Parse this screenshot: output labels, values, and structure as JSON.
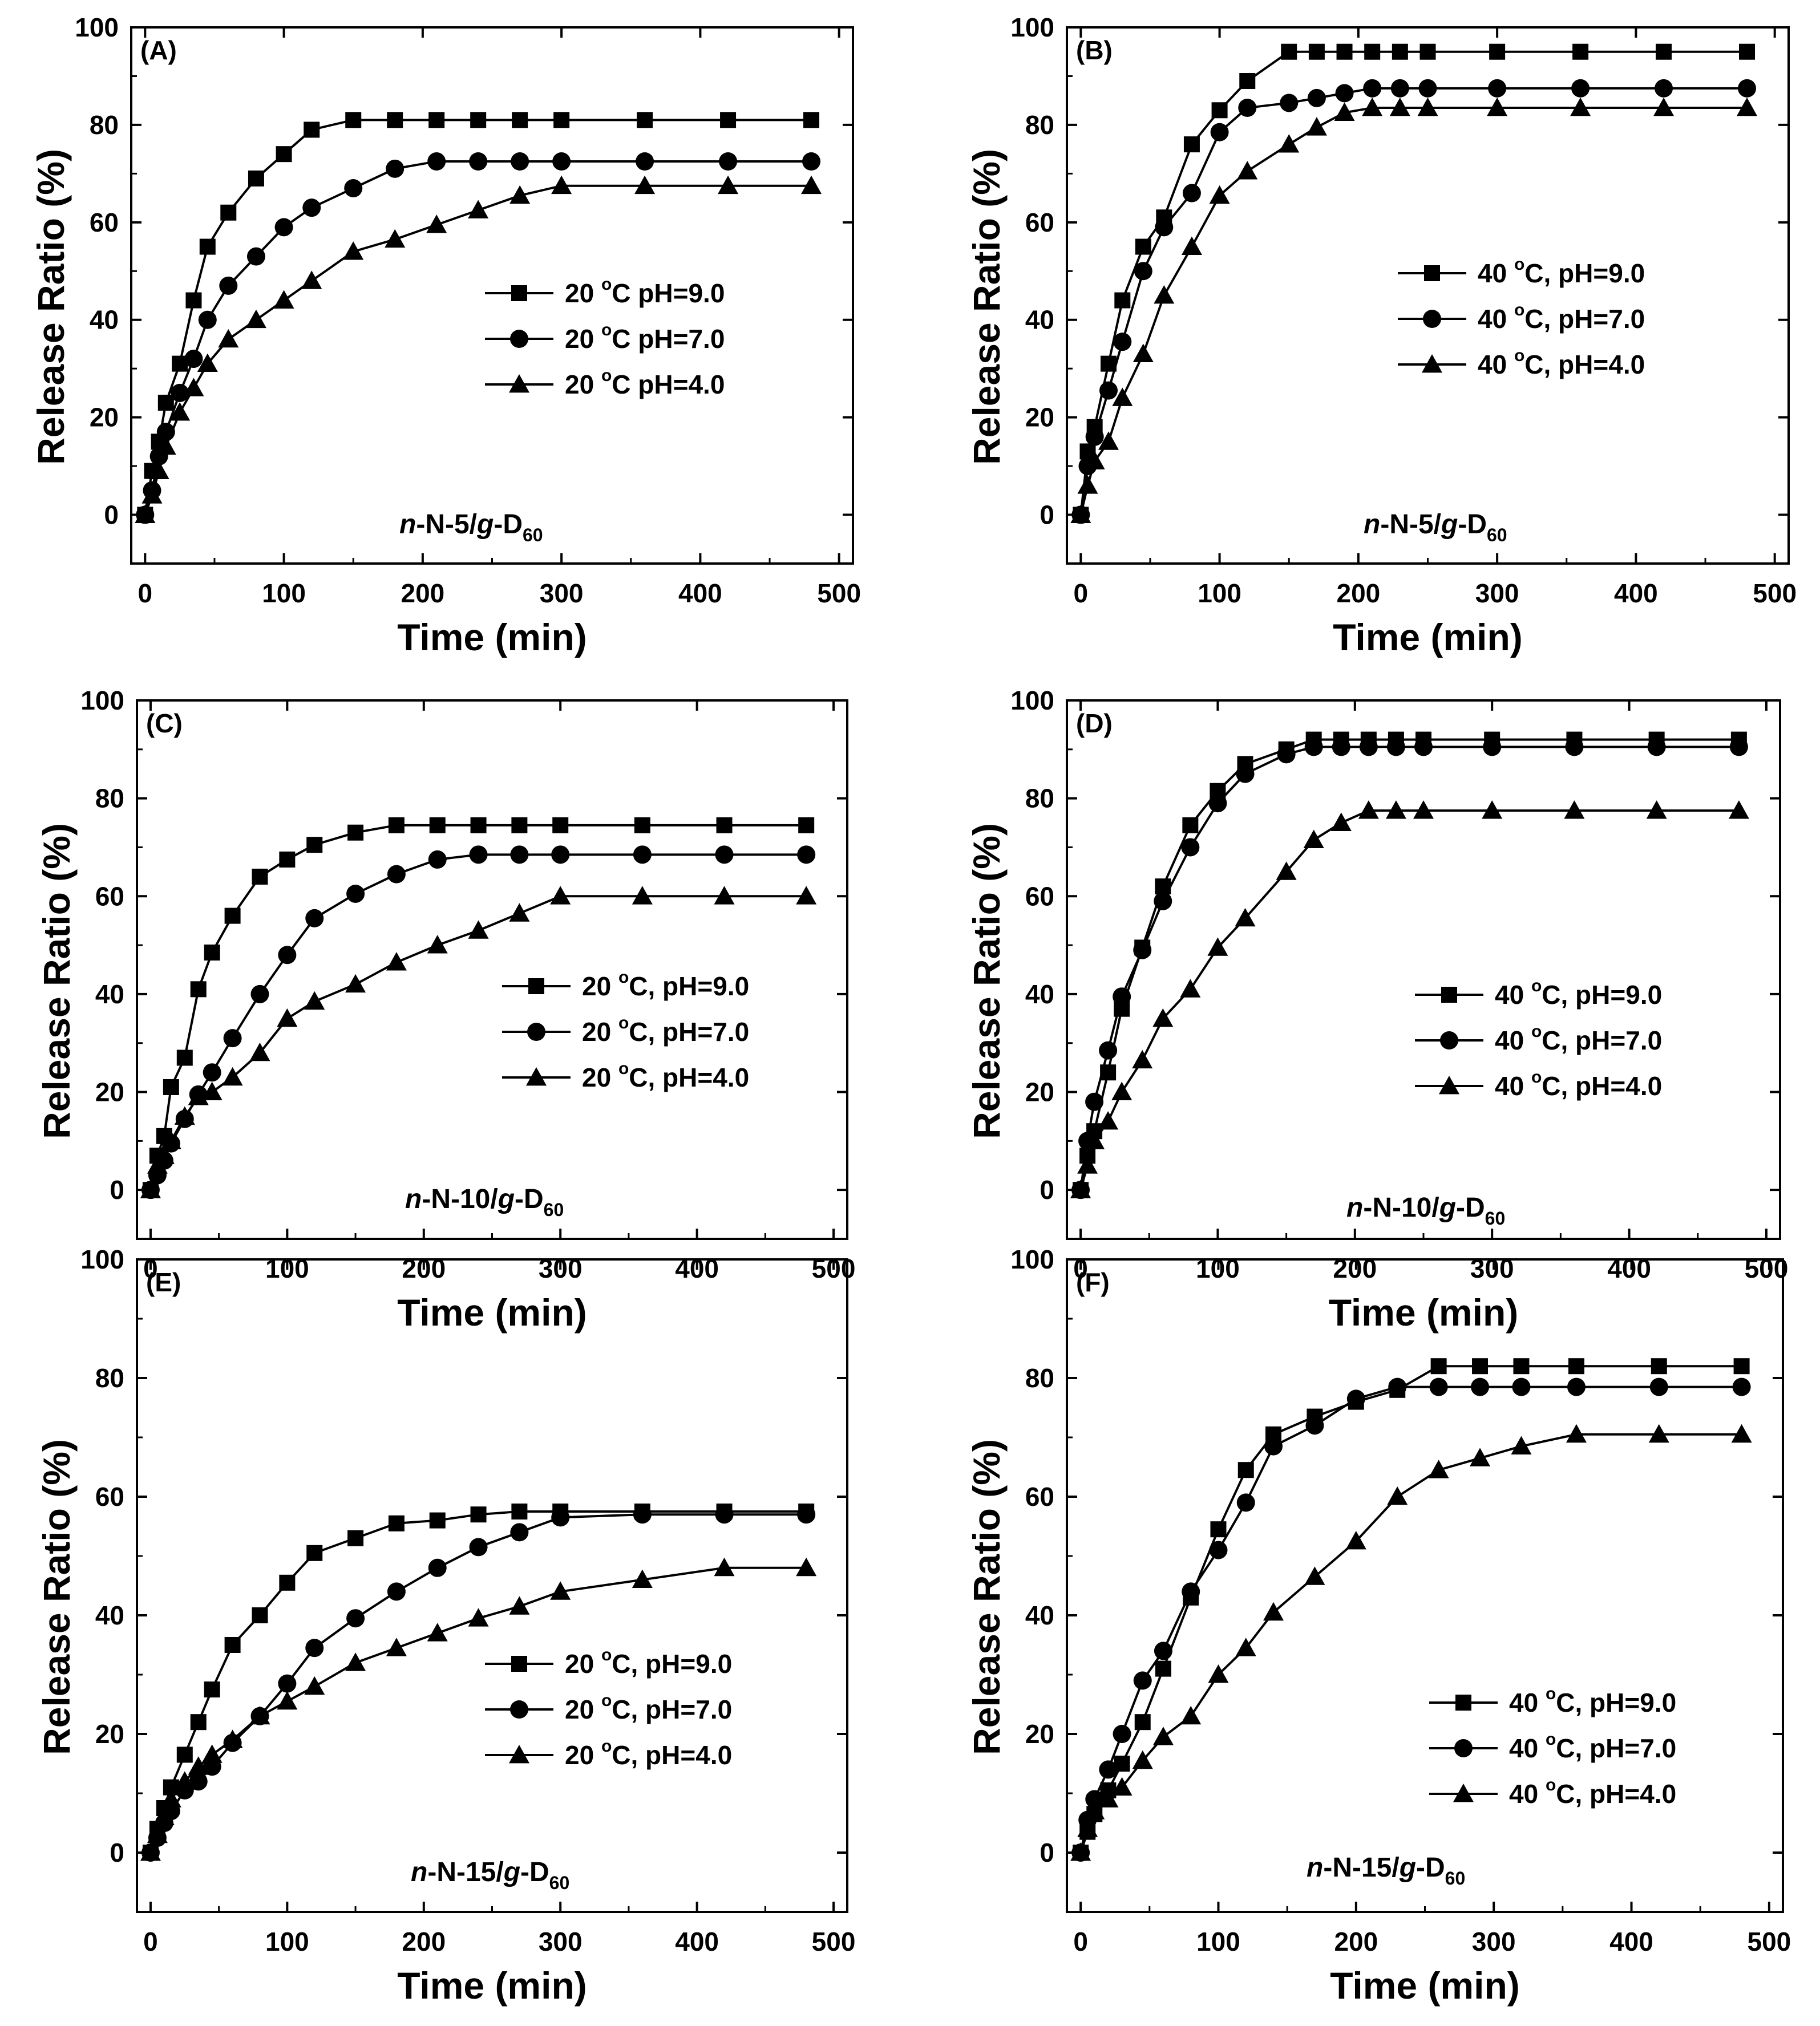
{
  "chart_data": [
    {
      "type": "line",
      "panel_label": "(A)",
      "xlabel": "Time (min)",
      "ylabel": "Release Ratio (%)",
      "xlim": [
        -10,
        510
      ],
      "ylim": [
        -10,
        100
      ],
      "xticks": [
        0,
        100,
        200,
        300,
        400,
        500
      ],
      "yticks": [
        0,
        20,
        40,
        60,
        80,
        100
      ],
      "legend_position": "center-right",
      "sample": {
        "prefix": "n",
        "middle": "-N-5/",
        "g": "g",
        "suffix": "-D",
        "sub": "60"
      },
      "series": [
        {
          "name": "20 °C pH=9.0",
          "temp": "20 ",
          "deg": "o",
          "rest": "C pH=9.0",
          "marker": "square",
          "x": [
            0,
            5,
            10,
            15,
            25,
            35,
            45,
            60,
            80,
            100,
            120,
            150,
            180,
            210,
            240,
            270,
            300,
            360,
            420,
            480
          ],
          "y": [
            0,
            9,
            15,
            23,
            31,
            44,
            55,
            62,
            69,
            74,
            79,
            81,
            81,
            81,
            81,
            81,
            81,
            81,
            81,
            81
          ]
        },
        {
          "name": "20 °C pH=7.0",
          "temp": "20 ",
          "deg": "o",
          "rest": "C pH=7.0",
          "marker": "circle",
          "x": [
            0,
            5,
            10,
            15,
            25,
            35,
            45,
            60,
            80,
            100,
            120,
            150,
            180,
            210,
            240,
            270,
            300,
            360,
            420,
            480
          ],
          "y": [
            0,
            5,
            12,
            17,
            25,
            32,
            40,
            47,
            53,
            59,
            63,
            67,
            71,
            72.5,
            72.5,
            72.5,
            72.5,
            72.5,
            72.5,
            72.5
          ]
        },
        {
          "name": "20 °C pH=4.0",
          "temp": "20 ",
          "deg": "o",
          "rest": "C pH=4.0",
          "marker": "triangle",
          "x": [
            0,
            5,
            10,
            15,
            25,
            35,
            45,
            60,
            80,
            100,
            120,
            150,
            180,
            210,
            240,
            270,
            300,
            360,
            420,
            480
          ],
          "y": [
            0,
            4,
            9,
            14,
            21,
            26,
            31,
            36,
            40,
            44,
            48,
            54,
            56.5,
            59.5,
            62.5,
            65.5,
            67.5,
            67.5,
            67.5,
            67.5
          ]
        }
      ]
    },
    {
      "type": "line",
      "panel_label": "(B)",
      "xlabel": "Time (min)",
      "ylabel": "Release Ratio (%)",
      "xlim": [
        -10,
        510
      ],
      "ylim": [
        -10,
        100
      ],
      "xticks": [
        0,
        100,
        200,
        300,
        400,
        500
      ],
      "yticks": [
        0,
        20,
        40,
        60,
        80,
        100
      ],
      "legend_position": "center-right",
      "sample": {
        "prefix": "n",
        "middle": "-N-5/",
        "g": "g",
        "suffix": "-D",
        "sub": "60"
      },
      "series": [
        {
          "name": "40 °C, pH=9.0",
          "temp": "40 ",
          "deg": "o",
          "rest": "C, pH=9.0",
          "marker": "square",
          "x": [
            0,
            5,
            10,
            20,
            30,
            45,
            60,
            80,
            100,
            120,
            150,
            170,
            190,
            210,
            230,
            250,
            300,
            360,
            420,
            480
          ],
          "y": [
            0,
            13,
            18,
            31,
            44,
            55,
            61,
            76,
            83,
            89,
            95,
            95,
            95,
            95,
            95,
            95,
            95,
            95,
            95,
            95
          ]
        },
        {
          "name": "40 °C, pH=7.0",
          "temp": "40 ",
          "deg": "o",
          "rest": "C, pH=7.0",
          "marker": "circle",
          "x": [
            0,
            5,
            10,
            20,
            30,
            45,
            60,
            80,
            100,
            120,
            150,
            170,
            190,
            210,
            230,
            250,
            300,
            360,
            420,
            480
          ],
          "y": [
            0,
            10,
            16,
            25.5,
            35.5,
            50,
            59,
            66,
            78.5,
            83.5,
            84.5,
            85.5,
            86.5,
            87.5,
            87.5,
            87.5,
            87.5,
            87.5,
            87.5,
            87.5
          ]
        },
        {
          "name": "40 °C, pH=4.0",
          "temp": "40 ",
          "deg": "o",
          "rest": "C, pH=4.0",
          "marker": "triangle",
          "x": [
            0,
            5,
            10,
            20,
            30,
            45,
            60,
            80,
            100,
            120,
            150,
            170,
            190,
            210,
            230,
            250,
            300,
            360,
            420,
            480
          ],
          "y": [
            0,
            6,
            11,
            15,
            24,
            33,
            45,
            55,
            65.5,
            70.5,
            76,
            79.5,
            82.5,
            83.5,
            83.5,
            83.5,
            83.5,
            83.5,
            83.5,
            83.5
          ]
        }
      ]
    },
    {
      "type": "line",
      "panel_label": "(C)",
      "xlabel": "Time (min)",
      "ylabel": "Release Ratio (%)",
      "xlim": [
        -10,
        510
      ],
      "ylim": [
        -10,
        100
      ],
      "xticks": [
        0,
        100,
        200,
        300,
        400,
        500
      ],
      "yticks": [
        0,
        20,
        40,
        60,
        80,
        100
      ],
      "legend_position": "center-right",
      "sample": {
        "prefix": "n",
        "middle": "-N-10/",
        "g": "g",
        "suffix": "-D",
        "sub": "60"
      },
      "series": [
        {
          "name": "20 °C, pH=9.0",
          "temp": "20 ",
          "deg": "o",
          "rest": "C, pH=9.0",
          "marker": "square",
          "x": [
            0,
            5,
            10,
            15,
            25,
            35,
            45,
            60,
            80,
            100,
            120,
            150,
            180,
            210,
            240,
            270,
            300,
            360,
            420,
            480
          ],
          "y": [
            0,
            7,
            11,
            21,
            27,
            41,
            48.5,
            56,
            64,
            67.5,
            70.5,
            73,
            74.5,
            74.5,
            74.5,
            74.5,
            74.5,
            74.5,
            74.5,
            74.5
          ]
        },
        {
          "name": "20 °C, pH=7.0",
          "temp": "20 ",
          "deg": "o",
          "rest": "C, pH=7.0",
          "marker": "circle",
          "x": [
            0,
            5,
            10,
            15,
            25,
            35,
            45,
            60,
            80,
            100,
            120,
            150,
            180,
            210,
            240,
            270,
            300,
            360,
            420,
            480
          ],
          "y": [
            0,
            3,
            6,
            9.5,
            14.5,
            19.5,
            24,
            31,
            40,
            48,
            55.5,
            60.5,
            64.5,
            67.5,
            68.5,
            68.5,
            68.5,
            68.5,
            68.5,
            68.5
          ]
        },
        {
          "name": "20 °C, pH=4.0",
          "temp": "20 ",
          "deg": "o",
          "rest": "C, pH=4.0",
          "marker": "triangle",
          "x": [
            0,
            5,
            10,
            15,
            25,
            35,
            45,
            60,
            80,
            100,
            120,
            150,
            180,
            210,
            240,
            270,
            300,
            360,
            420,
            480
          ],
          "y": [
            0,
            5,
            7,
            10,
            15,
            19,
            20,
            23,
            28,
            35,
            38.5,
            42,
            46.5,
            50,
            53,
            56.5,
            60,
            60,
            60,
            60
          ]
        }
      ]
    },
    {
      "type": "line",
      "panel_label": "(D)",
      "xlabel": "Time (min)",
      "ylabel": "Release Ratio (%)",
      "xlim": [
        -10,
        510
      ],
      "ylim": [
        -10,
        100
      ],
      "xticks": [
        0,
        100,
        200,
        300,
        400,
        500
      ],
      "yticks": [
        0,
        20,
        40,
        60,
        80,
        100
      ],
      "legend_position": "center-right",
      "sample": {
        "prefix": "n",
        "middle": "-N-10/",
        "g": "g",
        "suffix": "-D",
        "sub": "60"
      },
      "series": [
        {
          "name": "40 °C, pH=9.0",
          "temp": "40 ",
          "deg": "o",
          "rest": "C, pH=9.0",
          "marker": "square",
          "x": [
            0,
            5,
            10,
            20,
            30,
            45,
            60,
            80,
            100,
            120,
            150,
            170,
            190,
            210,
            230,
            250,
            300,
            360,
            420,
            480
          ],
          "y": [
            0,
            7,
            12,
            24,
            37,
            49.5,
            62,
            74.5,
            81.5,
            87,
            90,
            92,
            92,
            92,
            92,
            92,
            92,
            92,
            92,
            92
          ]
        },
        {
          "name": "40 °C, pH=7.0",
          "temp": "40 ",
          "deg": "o",
          "rest": "C, pH=7.0",
          "marker": "circle",
          "x": [
            0,
            5,
            10,
            20,
            30,
            45,
            60,
            80,
            100,
            120,
            150,
            170,
            190,
            210,
            230,
            250,
            300,
            360,
            420,
            480
          ],
          "y": [
            0,
            10,
            18,
            28.5,
            39.5,
            49,
            59,
            70,
            79,
            85,
            89,
            90.5,
            90.5,
            90.5,
            90.5,
            90.5,
            90.5,
            90.5,
            90.5,
            90.5
          ]
        },
        {
          "name": "40 °C, pH=4.0",
          "temp": "40 ",
          "deg": "o",
          "rest": "C, pH=4.0",
          "marker": "triangle",
          "x": [
            0,
            5,
            10,
            20,
            30,
            45,
            60,
            80,
            100,
            120,
            150,
            170,
            190,
            210,
            230,
            250,
            300,
            360,
            420,
            480
          ],
          "y": [
            0,
            5,
            10,
            14,
            20,
            26.5,
            35,
            41,
            49.5,
            55.5,
            65,
            71.5,
            75,
            77.5,
            77.5,
            77.5,
            77.5,
            77.5,
            77.5,
            77.5
          ]
        }
      ]
    },
    {
      "type": "line",
      "panel_label": "(E)",
      "xlabel": "Time (min)",
      "ylabel": "Release Ratio (%)",
      "xlim": [
        -10,
        510
      ],
      "ylim": [
        -10,
        100
      ],
      "xticks": [
        0,
        100,
        200,
        300,
        400,
        500
      ],
      "yticks": [
        0,
        20,
        40,
        60,
        80,
        100
      ],
      "legend_position": "lower-right",
      "sample": {
        "prefix": "n",
        "middle": "-N-15/",
        "g": "g",
        "suffix": "-D",
        "sub": "60"
      },
      "series": [
        {
          "name": "20 °C, pH=9.0",
          "temp": "20 ",
          "deg": "o",
          "rest": "C, pH=9.0",
          "marker": "square",
          "x": [
            0,
            5,
            10,
            15,
            25,
            35,
            45,
            60,
            80,
            100,
            120,
            150,
            180,
            210,
            240,
            270,
            300,
            360,
            420,
            480
          ],
          "y": [
            0,
            4,
            7.5,
            11,
            16.5,
            22,
            27.5,
            35,
            40,
            45.5,
            50.5,
            53,
            55.5,
            56,
            57,
            57.5,
            57.5,
            57.5,
            57.5,
            57.5
          ]
        },
        {
          "name": "20 °C, pH=7.0",
          "temp": "20 ",
          "deg": "o",
          "rest": "C, pH=7.0",
          "marker": "circle",
          "x": [
            0,
            5,
            10,
            15,
            25,
            35,
            45,
            60,
            80,
            100,
            120,
            150,
            180,
            210,
            240,
            270,
            300,
            360,
            420,
            480
          ],
          "y": [
            0,
            2.5,
            5,
            7,
            10.5,
            12,
            14.5,
            18.5,
            23,
            28.5,
            34.5,
            39.5,
            44,
            48,
            51.5,
            54,
            56.5,
            57,
            57,
            57
          ]
        },
        {
          "name": "20 °C, pH=4.0",
          "temp": "20 ",
          "deg": "o",
          "rest": "C, pH=4.0",
          "marker": "triangle",
          "x": [
            0,
            5,
            10,
            15,
            25,
            35,
            45,
            60,
            80,
            100,
            120,
            150,
            180,
            210,
            240,
            270,
            300,
            360,
            420,
            480
          ],
          "y": [
            0,
            3,
            6,
            9,
            12,
            14.5,
            16.5,
            19,
            23,
            25.5,
            28,
            32,
            34.5,
            37,
            39.5,
            41.5,
            44,
            46,
            48,
            48
          ]
        }
      ]
    },
    {
      "type": "line",
      "panel_label": "(F)",
      "xlabel": "Time (min)",
      "ylabel": "Release Ratio (%)",
      "xlim": [
        -10,
        510
      ],
      "ylim": [
        -10,
        100
      ],
      "xticks": [
        0,
        100,
        200,
        300,
        400,
        500
      ],
      "yticks": [
        0,
        20,
        40,
        60,
        80,
        100
      ],
      "legend_position": "lower-right",
      "sample": {
        "prefix": "n",
        "middle": "-N-15/",
        "g": "g",
        "suffix": "-D",
        "sub": "60"
      },
      "series": [
        {
          "name": "40 °C, pH=9.0",
          "temp": "40 ",
          "deg": "o",
          "rest": "C, pH=9.0",
          "marker": "square",
          "x": [
            0,
            5,
            10,
            20,
            30,
            45,
            60,
            80,
            100,
            120,
            140,
            170,
            200,
            230,
            260,
            290,
            320,
            360,
            420,
            480
          ],
          "y": [
            0,
            3.5,
            6.5,
            10.5,
            15,
            22,
            31,
            43,
            54.5,
            64.5,
            70.5,
            73.5,
            76,
            78,
            82,
            82,
            82,
            82,
            82,
            82
          ]
        },
        {
          "name": "40 °C, pH=7.0",
          "temp": "40 ",
          "deg": "o",
          "rest": "C, pH=7.0",
          "marker": "circle",
          "x": [
            0,
            5,
            10,
            20,
            30,
            45,
            60,
            80,
            100,
            120,
            140,
            170,
            200,
            230,
            260,
            290,
            320,
            360,
            420,
            480
          ],
          "y": [
            0,
            5.5,
            9,
            14,
            20,
            29,
            34,
            44,
            51,
            59,
            68.5,
            72,
            76.5,
            78.5,
            78.5,
            78.5,
            78.5,
            78.5,
            78.5,
            78.5
          ]
        },
        {
          "name": "40 °C, pH=4.0",
          "temp": "40 ",
          "deg": "o",
          "rest": "C, pH=4.0",
          "marker": "triangle",
          "x": [
            0,
            5,
            10,
            20,
            30,
            45,
            60,
            80,
            100,
            120,
            140,
            170,
            200,
            230,
            260,
            290,
            320,
            360,
            420,
            480
          ],
          "y": [
            0,
            4,
            7,
            9,
            11,
            15.5,
            19.5,
            23,
            30,
            34.5,
            40.5,
            46.5,
            52.5,
            60,
            64.5,
            66.5,
            68.5,
            70.5,
            70.5,
            70.5
          ]
        }
      ]
    }
  ]
}
